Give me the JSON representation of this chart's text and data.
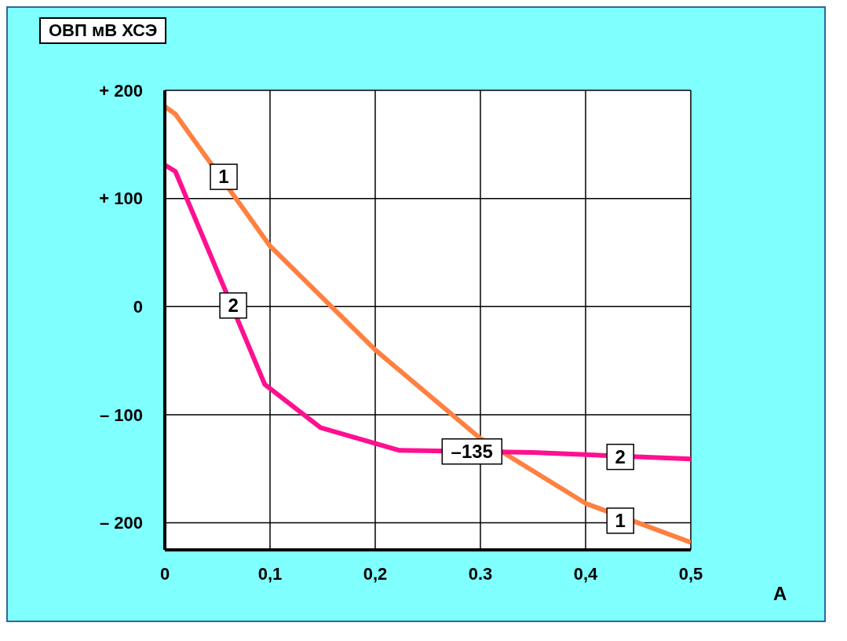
{
  "chart_data": {
    "type": "line",
    "ylabel": "ОВП мВ ХСЭ",
    "xlabel": "A",
    "series": [
      {
        "color": "#ff8040",
        "x": [
          0,
          0.01,
          0.1,
          0.2,
          0.3,
          0.4,
          0.5
        ],
        "values": [
          185,
          178,
          56,
          -40,
          -122,
          -182,
          -218
        ]
      },
      {
        "color": "#ff1090",
        "x": [
          0,
          0.01,
          0.095,
          0.148,
          0.223,
          0.35,
          0.4,
          0.5
        ],
        "values": [
          131,
          125,
          -72,
          -112,
          -133,
          -135,
          -137,
          -141
        ]
      }
    ],
    "xlim": [
      0,
      0.5
    ],
    "xticks": [
      0,
      {
        "value": 0.1,
        "label": "0,1"
      },
      {
        "value": 0.2,
        "label": "0,2"
      },
      {
        "value": 0.3,
        "label": "0.3"
      },
      {
        "value": 0.4,
        "label": "0,4"
      },
      {
        "value": 0.5,
        "label": "0,5"
      }
    ],
    "ylim": [
      -225,
      200
    ],
    "yticks": [
      {
        "value": 200,
        "label": "+ 200"
      },
      {
        "value": 100,
        "label": "+ 100"
      },
      0,
      {
        "value": -100,
        "label": "– 100"
      },
      {
        "value": -200,
        "label": "– 200"
      }
    ],
    "grid": true,
    "marker": "none",
    "line_style": "solid",
    "annotations": [
      {
        "text": "1",
        "x": 0.056,
        "y": 120
      },
      {
        "text": "2",
        "x": 0.065,
        "y": 1
      },
      {
        "text": "–135",
        "x": 0.292,
        "y": -134
      },
      {
        "text": "2",
        "x": 0.433,
        "y": -139
      },
      {
        "text": "1",
        "x": 0.433,
        "y": -198
      }
    ]
  }
}
